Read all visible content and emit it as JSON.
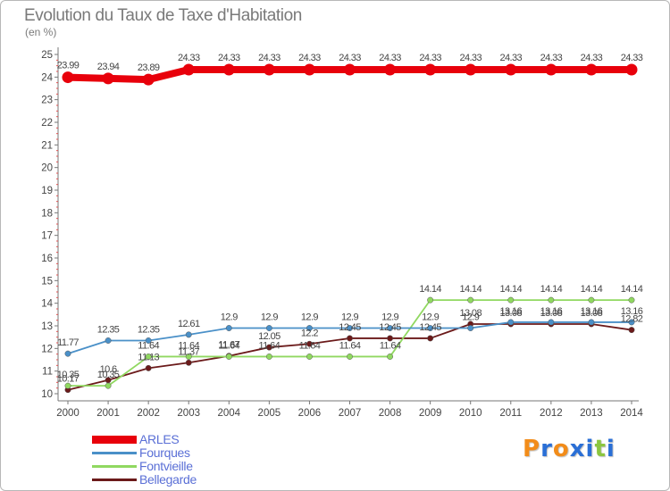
{
  "header": {
    "title": "Evolution du Taux de Taxe d'Habitation",
    "unit": "(en %)"
  },
  "logo": {
    "text": "Proxiti",
    "colors": [
      "#f28c1a",
      "#2a6fd6",
      "#f28c1a",
      "#2a6fd6",
      "#2a6fd6",
      "#8cc63f",
      "#2a6fd6"
    ]
  },
  "chart_data": {
    "type": "line",
    "title": "Evolution du Taux de Taxe d'Habitation",
    "ylabel": "(en %)",
    "xlabel": "",
    "x": [
      "2000",
      "2001",
      "2002",
      "2003",
      "2004",
      "2005",
      "2006",
      "2007",
      "2008",
      "2009",
      "2010",
      "2011",
      "2012",
      "2013",
      "2014"
    ],
    "yticks": [
      "10",
      "11",
      "12",
      "13",
      "14",
      "15",
      "16",
      "17",
      "18",
      "19",
      "20",
      "21",
      "22",
      "23",
      "24",
      "25"
    ],
    "ylim": [
      10,
      25
    ],
    "grid": false,
    "legend_position": "bottom-left",
    "series": [
      {
        "name": "ARLES",
        "color": "#e8000b",
        "values": [
          23.99,
          23.94,
          23.89,
          24.33,
          24.33,
          24.33,
          24.33,
          24.33,
          24.33,
          24.33,
          24.33,
          24.33,
          24.33,
          24.33,
          24.33
        ],
        "labels": [
          "23.99",
          "23.94",
          "23.89",
          "24.33",
          "24.33",
          "24.33",
          "24.33",
          "24.33",
          "24.33",
          "24.33",
          "24.33",
          "24.33",
          "24.33",
          "24.33",
          "24.33"
        ]
      },
      {
        "name": "Fourques",
        "color": "#4a90c8",
        "values": [
          11.77,
          12.35,
          12.35,
          12.61,
          12.9,
          12.9,
          12.9,
          12.9,
          12.9,
          12.9,
          12.9,
          13.16,
          13.16,
          13.16,
          13.16
        ],
        "labels": [
          "11.77",
          "12.35",
          "12.35",
          "12.61",
          "12.9",
          "12.9",
          "12.9",
          "12.9",
          "12.9",
          "12.9",
          "12.9",
          "13.16",
          "13.16",
          "13.16",
          "13.16"
        ]
      },
      {
        "name": "Fontvieille",
        "color": "#90d860",
        "values": [
          10.35,
          10.35,
          11.64,
          11.64,
          11.64,
          11.64,
          11.64,
          11.64,
          11.64,
          14.14,
          14.14,
          14.14,
          14.14,
          14.14,
          14.14
        ],
        "labels": [
          "10.35",
          "10.35",
          "11.64",
          "11.64",
          "11.64",
          "11.64",
          "11.64",
          "11.64",
          "11.64",
          "14.14",
          "14.14",
          "14.14",
          "14.14",
          "14.14",
          "14.14"
        ]
      },
      {
        "name": "Bellegarde",
        "color": "#6b1a1a",
        "values": [
          10.17,
          10.6,
          11.13,
          11.37,
          11.67,
          12.05,
          12.2,
          12.45,
          12.45,
          12.45,
          13.08,
          13.08,
          13.08,
          13.08,
          12.82
        ],
        "labels": [
          "10.17",
          "10.6",
          "11.13",
          "11.37",
          "11.67",
          "12.05",
          "12.2",
          "12.45",
          "12.45",
          "12.45",
          "13.08",
          "13.08",
          "13.08",
          "13.08",
          "12.82"
        ]
      }
    ]
  }
}
